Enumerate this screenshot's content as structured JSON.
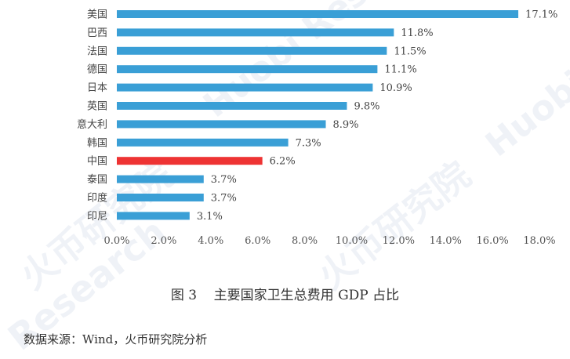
{
  "chart_data": {
    "type": "bar",
    "orientation": "horizontal",
    "categories": [
      "美国",
      "巴西",
      "法国",
      "德国",
      "日本",
      "英国",
      "意大利",
      "韩国",
      "中国",
      "泰国",
      "印度",
      "印尼"
    ],
    "values": [
      17.1,
      11.8,
      11.5,
      11.1,
      10.9,
      9.8,
      8.9,
      7.3,
      6.2,
      3.7,
      3.7,
      3.1
    ],
    "value_labels": [
      "17.1%",
      "11.8%",
      "11.5%",
      "11.1%",
      "10.9%",
      "9.8%",
      "8.9%",
      "7.3%",
      "6.2%",
      "3.7%",
      "3.7%",
      "3.1%"
    ],
    "x_ticks": [
      "0.0%",
      "2.0%",
      "4.0%",
      "6.0%",
      "8.0%",
      "10.0%",
      "12.0%",
      "14.0%",
      "16.0%",
      "18.0%"
    ],
    "xlim": [
      0,
      18
    ],
    "highlight_category": "中国",
    "bar_color": "#3a9fd6",
    "highlight_color": "#ee3333",
    "grid": false,
    "legend": "none"
  },
  "caption": "图 3    主要国家卫生总费用 GDP 占比",
  "source": "数据来源：Wind，火币研究院分析",
  "watermarks": [
    "Huobi Research",
    "火币研究院",
    "Research",
    "火币研究院",
    "Huobi Research"
  ]
}
